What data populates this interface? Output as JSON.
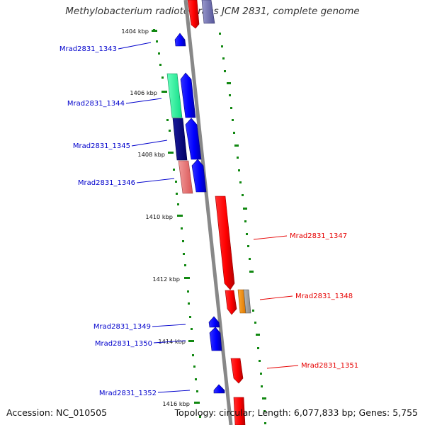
{
  "title": "Methylobacterium radiotolerans JCM 2831, complete genome",
  "footer": {
    "accession": "Accession: NC_010505",
    "summary": "Topology: circular; Length: 6,077,833 bp; Genes: 5,755"
  },
  "ticks": [
    "1404 kbp",
    "1406 kbp",
    "1408 kbp",
    "1410 kbp",
    "1412 kbp",
    "1414 kbp",
    "1416 kbp"
  ],
  "genes": [
    {
      "id": "Mrad2831_1343",
      "strand": "-",
      "color": "#0000ff"
    },
    {
      "id": "Mrad2831_1344",
      "strand": "-",
      "color": "#0000ff",
      "partner_color": "#33ff99"
    },
    {
      "id": "Mrad2831_1345",
      "strand": "-",
      "color": "#0000ff",
      "partner_color": "#000080"
    },
    {
      "id": "Mrad2831_1346",
      "strand": "-",
      "color": "#0000ff",
      "partner_color": "#e66666"
    },
    {
      "id": "Mrad2831_1347",
      "strand": "+",
      "color": "#ff0000"
    },
    {
      "id": "Mrad2831_1348",
      "strand": "+",
      "color": "#ff0000",
      "partner_colors": [
        "#ff8800",
        "#999999"
      ]
    },
    {
      "id": "Mrad2831_1349",
      "strand": "-",
      "color": "#0000ff"
    },
    {
      "id": "Mrad2831_1350",
      "strand": "-",
      "color": "#0000ff"
    },
    {
      "id": "Mrad2831_1351",
      "strand": "+",
      "color": "#ff0000"
    },
    {
      "id": "Mrad2831_1352",
      "strand": "-",
      "color": "#0000ff"
    }
  ],
  "colors": {
    "forward": "#e60000",
    "reverse": "#0000cc",
    "tick": "#118811",
    "backbone": "#888888"
  }
}
